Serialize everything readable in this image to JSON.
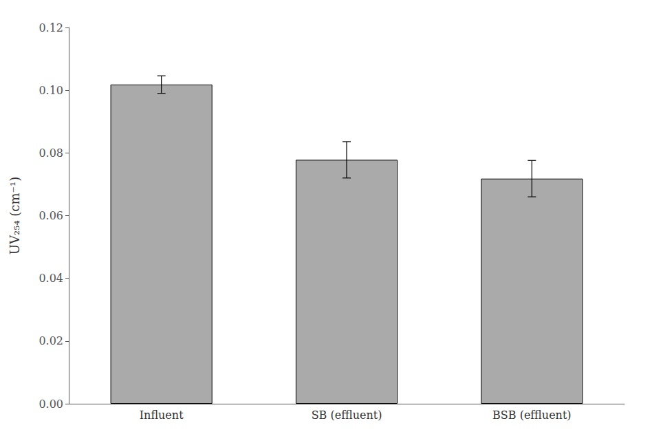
{
  "chart_data": {
    "type": "bar",
    "categories": [
      "Influent",
      "SB (effluent)",
      "BSB (effluent)"
    ],
    "values": [
      0.1018,
      0.0778,
      0.0718
    ],
    "errors": [
      0.0028,
      0.0058,
      0.0058
    ],
    "color": "#aaaaaa",
    "ylabel": "UV₂₅₄ (cm⁻¹)",
    "ylim": [
      0.0,
      0.12
    ],
    "yticks": [
      {
        "value": 0,
        "label": "0.00"
      },
      0.02,
      0.04,
      0.06,
      0.08,
      {
        "value": 0.1,
        "label": "0.10"
      },
      0.12
    ],
    "grid": false
  }
}
